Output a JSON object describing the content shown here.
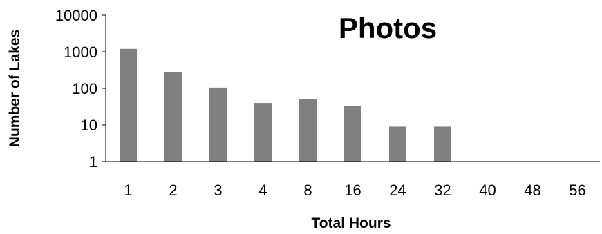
{
  "chart_data": {
    "type": "bar",
    "title": "Photos",
    "xlabel": "Total Hours",
    "ylabel": "Number of Lakes",
    "y_scale": "log",
    "ylim": [
      1,
      10000
    ],
    "y_ticks": [
      "1",
      "10",
      "100",
      "1000",
      "10000"
    ],
    "categories": [
      "1",
      "2",
      "3",
      "4",
      "8",
      "16",
      "24",
      "32",
      "40",
      "48",
      "56"
    ],
    "values": [
      1200,
      280,
      105,
      40,
      50,
      33,
      9,
      9,
      null,
      null,
      null
    ],
    "grid": false,
    "legend": "none",
    "colors": {
      "bar": "#808080",
      "axis": "#000000",
      "text": "#000000"
    }
  }
}
